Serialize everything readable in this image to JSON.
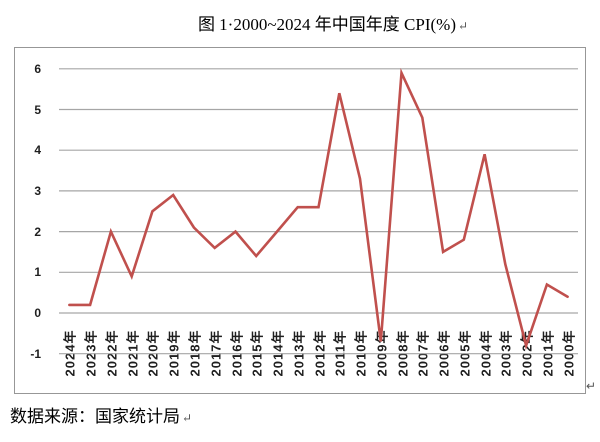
{
  "page": {
    "title_text": "图 1·2000~2024 年中国年度 CPI(%)",
    "title_mark": "↵",
    "chart_corner_mark": "↵",
    "source_text": "数据来源：国家统计局",
    "source_mark": "↵"
  },
  "chart_data": {
    "type": "line",
    "title": "图 1 2000~2024 年中国年度 CPI(%)",
    "xlabel": "",
    "ylabel": "",
    "categories": [
      "2024年",
      "2023年",
      "2022年",
      "2021年",
      "2020年",
      "2019年",
      "2018年",
      "2017年",
      "2016年",
      "2015年",
      "2014年",
      "2013年",
      "2012年",
      "2011年",
      "2010年",
      "2009年",
      "2008年",
      "2007年",
      "2006年",
      "2005年",
      "2004年",
      "2003年",
      "2002年",
      "2001年",
      "2000年"
    ],
    "values": [
      0.2,
      0.2,
      2.0,
      0.9,
      2.5,
      2.9,
      2.1,
      1.6,
      2.0,
      1.4,
      2.0,
      2.6,
      2.6,
      5.4,
      3.3,
      -0.7,
      5.9,
      4.8,
      1.5,
      1.8,
      3.9,
      1.2,
      -0.8,
      0.7,
      0.4
    ],
    "y_ticks": [
      "6",
      "5",
      "4",
      "3",
      "2",
      "1",
      "0",
      "-1"
    ],
    "ylim": [
      -1,
      6
    ],
    "x_axis_reversed": true,
    "grid": true,
    "legend_position": "none",
    "line_color": "#C0504D",
    "gridline_color": "#A6A6A6",
    "frame_border_color": "#979797"
  }
}
